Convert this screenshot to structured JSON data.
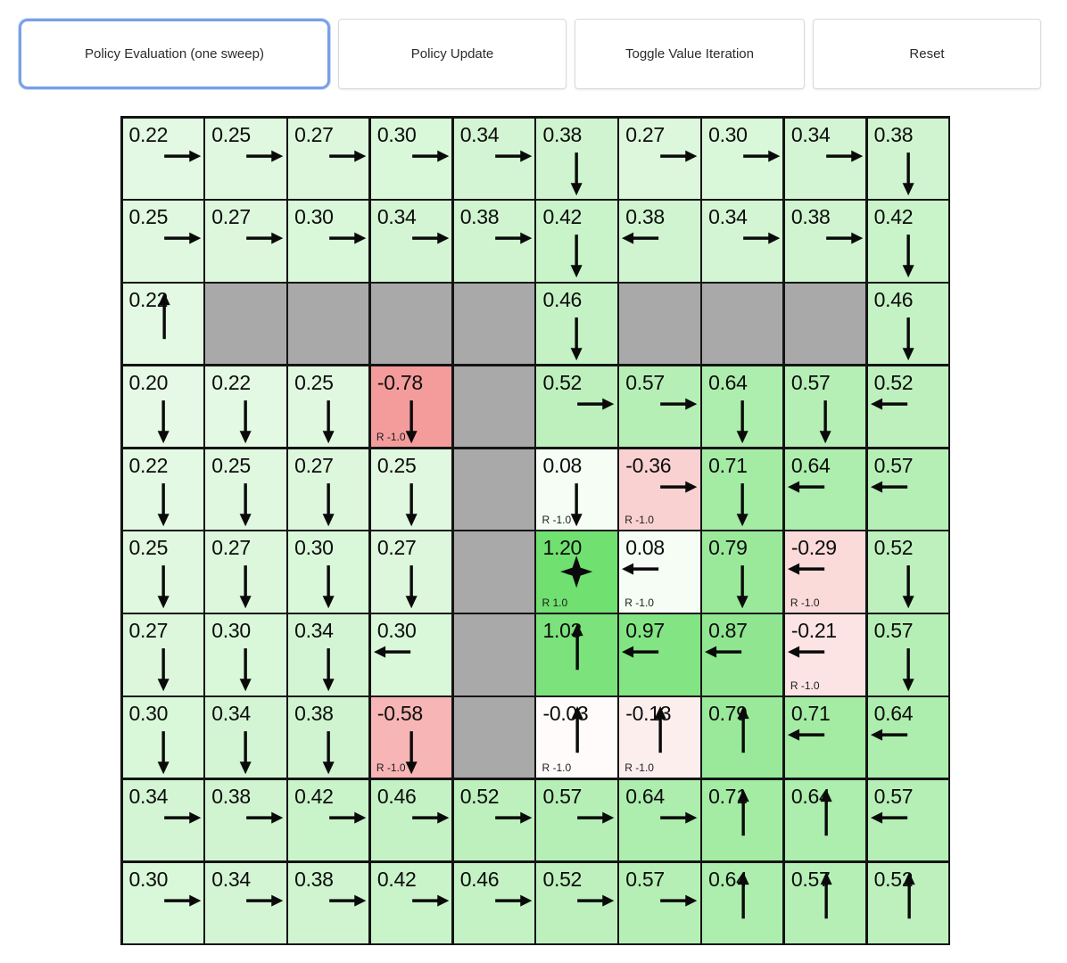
{
  "toolbar": {
    "buttons": [
      {
        "label": "Policy Evaluation (one sweep)",
        "active": true
      },
      {
        "label": "Policy Update",
        "active": false
      },
      {
        "label": "Toggle Value Iteration",
        "active": false
      },
      {
        "label": "Reset",
        "active": false
      }
    ],
    "active_border_color": "#79a0e6"
  },
  "colors": {
    "wall": "#a9a9a9",
    "grid_line": "#141414",
    "positive_max": "#70e070",
    "negative_max": "#f49c9c",
    "arrow": "#0a0a0a"
  },
  "grid": {
    "rows": 10,
    "cols": 10,
    "cells": [
      [
        {
          "value": "0.22",
          "arrow": "right",
          "bg": "#e3f9e3"
        },
        {
          "value": "0.25",
          "arrow": "right",
          "bg": "#dff8df"
        },
        {
          "value": "0.27",
          "arrow": "right",
          "bg": "#ddf7dd"
        },
        {
          "value": "0.30",
          "arrow": "right",
          "bg": "#d9f7d9"
        },
        {
          "value": "0.34",
          "arrow": "right",
          "bg": "#d4f5d4"
        },
        {
          "value": "0.38",
          "arrow": "down",
          "bg": "#cff4cf"
        },
        {
          "value": "0.27",
          "arrow": "right",
          "bg": "#ddf7dd"
        },
        {
          "value": "0.30",
          "arrow": "right",
          "bg": "#d9f7d9"
        },
        {
          "value": "0.34",
          "arrow": "right",
          "bg": "#d4f5d4"
        },
        {
          "value": "0.38",
          "arrow": "down",
          "bg": "#cff4cf"
        }
      ],
      [
        {
          "value": "0.25",
          "arrow": "right",
          "bg": "#dff8df"
        },
        {
          "value": "0.27",
          "arrow": "right",
          "bg": "#ddf7dd"
        },
        {
          "value": "0.30",
          "arrow": "right",
          "bg": "#d9f7d9"
        },
        {
          "value": "0.34",
          "arrow": "right",
          "bg": "#d4f5d4"
        },
        {
          "value": "0.38",
          "arrow": "right",
          "bg": "#cff4cf"
        },
        {
          "value": "0.42",
          "arrow": "down",
          "bg": "#c9f3c9"
        },
        {
          "value": "0.38",
          "arrow": "left",
          "bg": "#cff4cf"
        },
        {
          "value": "0.34",
          "arrow": "right",
          "bg": "#d4f5d4"
        },
        {
          "value": "0.38",
          "arrow": "right",
          "bg": "#cff4cf"
        },
        {
          "value": "0.42",
          "arrow": "down",
          "bg": "#c9f3c9"
        }
      ],
      [
        {
          "value": "0.22",
          "arrow": "up",
          "bg": "#e3f9e3"
        },
        {
          "wall": true
        },
        {
          "wall": true
        },
        {
          "wall": true
        },
        {
          "wall": true
        },
        {
          "value": "0.46",
          "arrow": "down",
          "bg": "#c4f2c4"
        },
        {
          "wall": true
        },
        {
          "wall": true
        },
        {
          "wall": true
        },
        {
          "value": "0.46",
          "arrow": "down",
          "bg": "#c4f2c4"
        }
      ],
      [
        {
          "value": "0.20",
          "arrow": "down",
          "bg": "#e6f9e6"
        },
        {
          "value": "0.22",
          "arrow": "down",
          "bg": "#e3f9e3"
        },
        {
          "value": "0.25",
          "arrow": "down",
          "bg": "#dff8df"
        },
        {
          "value": "-0.78",
          "arrow": "down",
          "reward": "R -1.0",
          "bg": "#f49c9c"
        },
        {
          "wall": true
        },
        {
          "value": "0.52",
          "arrow": "right",
          "bg": "#bdf0bd"
        },
        {
          "value": "0.57",
          "arrow": "right",
          "bg": "#b6efb6"
        },
        {
          "value": "0.64",
          "arrow": "down",
          "bg": "#adedad"
        },
        {
          "value": "0.57",
          "arrow": "down",
          "bg": "#b6efb6"
        },
        {
          "value": "0.52",
          "arrow": "left",
          "bg": "#bdf0bd"
        }
      ],
      [
        {
          "value": "0.22",
          "arrow": "down",
          "bg": "#e3f9e3"
        },
        {
          "value": "0.25",
          "arrow": "down",
          "bg": "#dff8df"
        },
        {
          "value": "0.27",
          "arrow": "down",
          "bg": "#ddf7dd"
        },
        {
          "value": "0.25",
          "arrow": "down",
          "bg": "#dff8df"
        },
        {
          "wall": true
        },
        {
          "value": "0.08",
          "arrow": "down",
          "reward": "R -1.0",
          "bg": "#f5fdf5"
        },
        {
          "value": "-0.36",
          "arrow": "right",
          "reward": "R -1.0",
          "bg": "#fad1d1"
        },
        {
          "value": "0.71",
          "arrow": "down",
          "bg": "#a4eba4"
        },
        {
          "value": "0.64",
          "arrow": "left",
          "bg": "#adedad"
        },
        {
          "value": "0.57",
          "arrow": "left",
          "bg": "#b6efb6"
        }
      ],
      [
        {
          "value": "0.25",
          "arrow": "down",
          "bg": "#dff8df"
        },
        {
          "value": "0.27",
          "arrow": "down",
          "bg": "#ddf7dd"
        },
        {
          "value": "0.30",
          "arrow": "down",
          "bg": "#d9f7d9"
        },
        {
          "value": "0.27",
          "arrow": "down",
          "bg": "#ddf7dd"
        },
        {
          "wall": true
        },
        {
          "value": "1.20",
          "arrow": "star",
          "reward": "R 1.0",
          "bg": "#70e070"
        },
        {
          "value": "0.08",
          "arrow": "left",
          "reward": "R -1.0",
          "bg": "#f5fdf5"
        },
        {
          "value": "0.79",
          "arrow": "down",
          "bg": "#9ae99a"
        },
        {
          "value": "-0.29",
          "arrow": "left",
          "reward": "R -1.0",
          "bg": "#fbdada"
        },
        {
          "value": "0.52",
          "arrow": "down",
          "bg": "#bdf0bd"
        }
      ],
      [
        {
          "value": "0.27",
          "arrow": "down",
          "bg": "#ddf7dd"
        },
        {
          "value": "0.30",
          "arrow": "down",
          "bg": "#d9f7d9"
        },
        {
          "value": "0.34",
          "arrow": "down",
          "bg": "#d4f5d4"
        },
        {
          "value": "0.30",
          "arrow": "left",
          "bg": "#d9f7d9"
        },
        {
          "wall": true
        },
        {
          "value": "1.03",
          "arrow": "up",
          "bg": "#7ce27c"
        },
        {
          "value": "0.97",
          "arrow": "left",
          "bg": "#83e483"
        },
        {
          "value": "0.87",
          "arrow": "left",
          "bg": "#90e690"
        },
        {
          "value": "-0.21",
          "arrow": "left",
          "reward": "R -1.0",
          "bg": "#fce4e4"
        },
        {
          "value": "0.57",
          "arrow": "down",
          "bg": "#b6efb6"
        }
      ],
      [
        {
          "value": "0.30",
          "arrow": "down",
          "bg": "#d9f7d9"
        },
        {
          "value": "0.34",
          "arrow": "down",
          "bg": "#d4f5d4"
        },
        {
          "value": "0.38",
          "arrow": "down",
          "bg": "#cff4cf"
        },
        {
          "value": "-0.58",
          "arrow": "down",
          "reward": "R -1.0",
          "bg": "#f7b5b5"
        },
        {
          "wall": true
        },
        {
          "value": "-0.03",
          "arrow": "up",
          "reward": "R -1.0",
          "bg": "#fffbfb"
        },
        {
          "value": "-0.13",
          "arrow": "up",
          "reward": "R -1.0",
          "bg": "#fdeeee"
        },
        {
          "value": "0.79",
          "arrow": "up",
          "bg": "#9ae99a"
        },
        {
          "value": "0.71",
          "arrow": "left",
          "bg": "#a4eba4"
        },
        {
          "value": "0.64",
          "arrow": "left",
          "bg": "#adedad"
        }
      ],
      [
        {
          "value": "0.34",
          "arrow": "right",
          "bg": "#d4f5d4"
        },
        {
          "value": "0.38",
          "arrow": "right",
          "bg": "#cff4cf"
        },
        {
          "value": "0.42",
          "arrow": "right",
          "bg": "#c9f3c9"
        },
        {
          "value": "0.46",
          "arrow": "right",
          "bg": "#c4f2c4"
        },
        {
          "value": "0.52",
          "arrow": "right",
          "bg": "#bdf0bd"
        },
        {
          "value": "0.57",
          "arrow": "right",
          "bg": "#b6efb6"
        },
        {
          "value": "0.64",
          "arrow": "right",
          "bg": "#adedad"
        },
        {
          "value": "0.71",
          "arrow": "up",
          "bg": "#a4eba4"
        },
        {
          "value": "0.64",
          "arrow": "up",
          "bg": "#adedad"
        },
        {
          "value": "0.57",
          "arrow": "left",
          "bg": "#b6efb6"
        }
      ],
      [
        {
          "value": "0.30",
          "arrow": "right",
          "bg": "#d9f7d9"
        },
        {
          "value": "0.34",
          "arrow": "right",
          "bg": "#d4f5d4"
        },
        {
          "value": "0.38",
          "arrow": "right",
          "bg": "#cff4cf"
        },
        {
          "value": "0.42",
          "arrow": "right",
          "bg": "#c9f3c9"
        },
        {
          "value": "0.46",
          "arrow": "right",
          "bg": "#c4f2c4"
        },
        {
          "value": "0.52",
          "arrow": "right",
          "bg": "#bdf0bd"
        },
        {
          "value": "0.57",
          "arrow": "right",
          "bg": "#b6efb6"
        },
        {
          "value": "0.64",
          "arrow": "up",
          "bg": "#adedad"
        },
        {
          "value": "0.57",
          "arrow": "up",
          "bg": "#b6efb6"
        },
        {
          "value": "0.52",
          "arrow": "up",
          "bg": "#bdf0bd"
        }
      ]
    ]
  }
}
